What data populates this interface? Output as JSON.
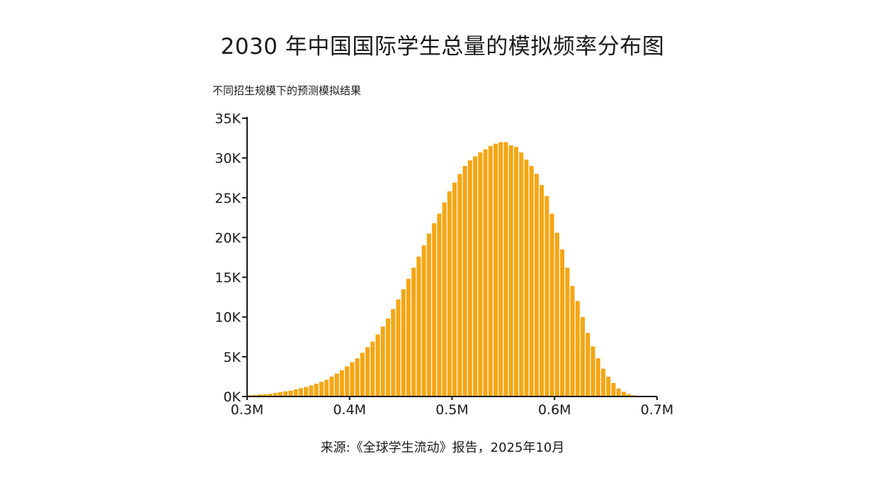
{
  "chart_data": {
    "type": "bar",
    "title": "2030 年中国国际学生总量的模拟频率分布图",
    "subtitle": "不同招生规模下的预测模拟结果",
    "source": "来源:《全球学生流动》报告，2025年10月",
    "xlim": [
      300000,
      700000
    ],
    "ylim": [
      0,
      35000
    ],
    "x_ticks": [
      300000,
      400000,
      500000,
      600000,
      700000
    ],
    "x_tick_labels": [
      "0.3M",
      "0.4M",
      "0.5M",
      "0.6M",
      "0.7M"
    ],
    "y_ticks": [
      0,
      5000,
      10000,
      15000,
      20000,
      25000,
      30000,
      35000
    ],
    "y_tick_labels": [
      "0K",
      "5K",
      "10K",
      "15K",
      "20K",
      "25K",
      "30K",
      "35K"
    ],
    "bin_width": 5000,
    "bins_start": [
      300000,
      305000,
      310000,
      315000,
      320000,
      325000,
      330000,
      335000,
      340000,
      345000,
      350000,
      355000,
      360000,
      365000,
      370000,
      375000,
      380000,
      385000,
      390000,
      395000,
      400000,
      405000,
      410000,
      415000,
      420000,
      425000,
      430000,
      435000,
      440000,
      445000,
      450000,
      455000,
      460000,
      465000,
      470000,
      475000,
      480000,
      485000,
      490000,
      495000,
      500000,
      505000,
      510000,
      515000,
      520000,
      525000,
      530000,
      535000,
      540000,
      545000,
      550000,
      555000,
      560000,
      565000,
      570000,
      575000,
      580000,
      585000,
      590000,
      595000,
      600000,
      605000,
      610000,
      615000,
      620000,
      625000,
      630000,
      635000,
      640000,
      645000,
      650000,
      655000,
      660000,
      665000,
      670000,
      675000,
      680000,
      685000,
      690000,
      695000
    ],
    "values": [
      150,
      200,
      250,
      300,
      350,
      450,
      550,
      650,
      750,
      900,
      1050,
      1200,
      1400,
      1600,
      1850,
      2100,
      2500,
      2900,
      3300,
      3800,
      4300,
      4800,
      5500,
      6200,
      6900,
      7800,
      8800,
      9800,
      11000,
      12200,
      13500,
      14800,
      16200,
      17600,
      19000,
      20500,
      21800,
      23000,
      24400,
      25800,
      26900,
      28000,
      29000,
      29700,
      30200,
      30700,
      31100,
      31500,
      31800,
      32000,
      32000,
      31600,
      31400,
      30700,
      29800,
      29000,
      28000,
      26600,
      25200,
      23000,
      20600,
      18500,
      16200,
      13900,
      12000,
      10000,
      8000,
      6300,
      4800,
      3500,
      2500,
      1700,
      1000,
      600,
      300,
      150,
      80,
      50,
      30,
      20
    ],
    "grid": false,
    "legend": "none",
    "colors": {
      "bar": "#f5a614",
      "axis": "#1a1a1a"
    }
  }
}
